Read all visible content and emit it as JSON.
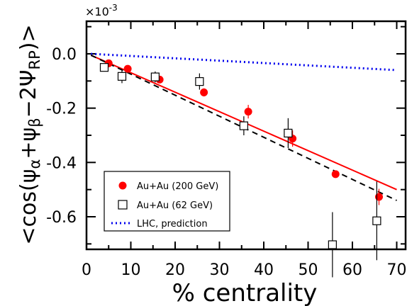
{
  "chart_data": {
    "type": "scatter",
    "multiplier_label": "×10",
    "multiplier_exp": "-3",
    "xlabel": "% centrality",
    "ylabel": {
      "prefix": "<cos(ψ",
      "sub_a": "α",
      "plus": "+ψ",
      "sub_b": "β",
      "minus": "−2Ψ",
      "sub_rp": "RP",
      "suffix": ")>"
    },
    "xlim": [
      0,
      72
    ],
    "ylim": [
      -0.00072,
      0.00012
    ],
    "x_ticks": [
      0,
      10,
      20,
      30,
      40,
      50,
      60,
      70
    ],
    "x_tick_labels": [
      "0",
      "10",
      "20",
      "30",
      "40",
      "50",
      "60",
      "70"
    ],
    "y_ticks": [
      0,
      -0.0002,
      -0.0004,
      -0.0006
    ],
    "y_tick_labels": [
      "0.0",
      "-0.2",
      "-0.4",
      "-0.6"
    ],
    "legend_position": "bottom-left",
    "series": [
      {
        "name": "Au+Au (200 GeV)",
        "marker": "circle",
        "color": "#ff0000",
        "points": [
          {
            "x": 5,
            "y": -3.5e-05,
            "err": 8e-06
          },
          {
            "x": 9.3,
            "y": -5.5e-05,
            "err": 8e-06
          },
          {
            "x": 16.5,
            "y": -9.5e-05,
            "err": 1e-05
          },
          {
            "x": 26.5,
            "y": -0.000142,
            "err": 1.5e-05
          },
          {
            "x": 36.5,
            "y": -0.000213,
            "err": 2.5e-05
          },
          {
            "x": 46.5,
            "y": -0.000312,
            "err": 3e-05
          },
          {
            "x": 56.2,
            "y": -0.000443,
            "err": 1.3e-05
          },
          {
            "x": 66,
            "y": -0.000527,
            "err": 3e-05
          }
        ]
      },
      {
        "name": "Au+Au (62 GeV)",
        "marker": "open-square",
        "color": "#000000",
        "points": [
          {
            "x": 4,
            "y": -5e-05,
            "err": 1.5e-05
          },
          {
            "x": 8,
            "y": -8.3e-05,
            "err": 2.5e-05
          },
          {
            "x": 15.5,
            "y": -8.5e-05,
            "err": 2e-05
          },
          {
            "x": 25.5,
            "y": -0.000102,
            "err": 3e-05
          },
          {
            "x": 35.5,
            "y": -0.000265,
            "err": 3.5e-05
          },
          {
            "x": 45.5,
            "y": -0.000292,
            "err": 5.5e-05
          },
          {
            "x": 55.5,
            "y": -0.000703,
            "err": 0.00012
          },
          {
            "x": 65.5,
            "y": -0.000615,
            "err": 0.000145
          }
        ]
      }
    ],
    "lines": [
      {
        "name": "LHC, prediction",
        "style": "dotted",
        "color": "#0000ee",
        "x": [
          1,
          70
        ],
        "y": [
          0.0,
          -6e-05
        ]
      },
      {
        "name": "fit 200 GeV",
        "style": "solid",
        "color": "#ff0000",
        "x": [
          1,
          70
        ],
        "y": [
          -5e-06,
          -0.0005
        ]
      },
      {
        "name": "fit 62 GeV",
        "style": "dashed",
        "color": "#000000",
        "x": [
          1,
          70
        ],
        "y": [
          -5e-06,
          -0.00054
        ]
      }
    ]
  }
}
